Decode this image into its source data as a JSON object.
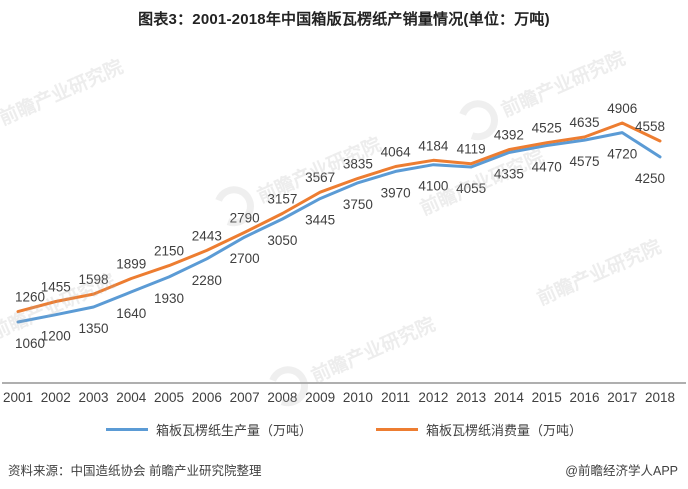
{
  "title": "图表3：2001-2018年中国箱版瓦楞纸产销量情况(单位：万吨)",
  "chart_data": {
    "type": "line",
    "x": [
      2001,
      2002,
      2003,
      2004,
      2005,
      2006,
      2007,
      2008,
      2009,
      2010,
      2011,
      2012,
      2013,
      2014,
      2015,
      2016,
      2017,
      2018
    ],
    "series": [
      {
        "name": "箱板瓦楞纸生产量（万吨）",
        "color": "#5B9BD5",
        "label_position": "below",
        "values": [
          1060,
          1200,
          1350,
          1640,
          1930,
          2280,
          2700,
          3050,
          3445,
          3750,
          3970,
          4100,
          4055,
          4335,
          4470,
          4575,
          4720,
          4250
        ]
      },
      {
        "name": "箱板瓦楞纸消费量（万吨）",
        "color": "#ED7D31",
        "label_position": "above",
        "values": [
          1260,
          1455,
          1598,
          1899,
          2150,
          2443,
          2790,
          3157,
          3567,
          3835,
          4064,
          4184,
          4119,
          4392,
          4525,
          4635,
          4906,
          4558
        ]
      }
    ],
    "data_labels": true,
    "grid": false,
    "legend_position": "bottom",
    "y_axis_visible": false
  },
  "footer": {
    "source": "资料来源：中国造纸协会 前瞻产业研究院整理",
    "credit": "@前瞻经济学人APP"
  },
  "watermark": {
    "text": "前瞻产业研究院"
  },
  "colors": {
    "axis_line": "#7f7f7f",
    "label_text": "#404040",
    "title_text": "#222222"
  }
}
